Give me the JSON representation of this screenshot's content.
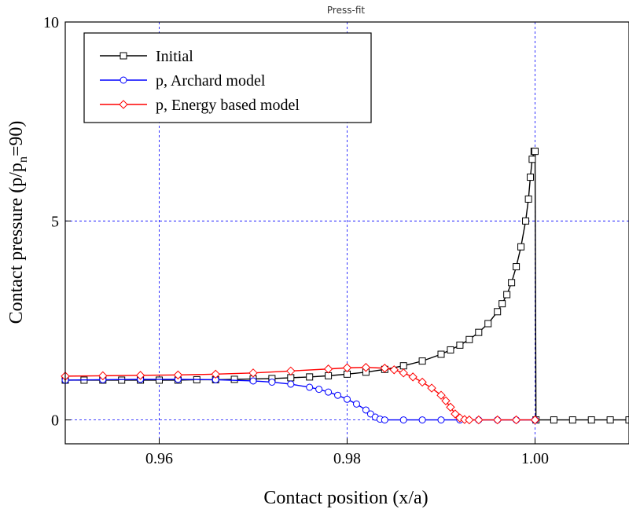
{
  "chart_data": {
    "type": "line",
    "title": "Press-fit",
    "xlabel": "Contact position (x/a)",
    "ylabel_main": "Contact pressure (p/p",
    "ylabel_sub": "n",
    "ylabel_tail": "=90)",
    "xlim": [
      0.95,
      1.01
    ],
    "ylim": [
      -0.6,
      10
    ],
    "x_ticks": [
      0.96,
      0.98,
      1.0
    ],
    "x_tick_labels": [
      "0.96",
      "0.98",
      "1.00"
    ],
    "y_ticks": [
      0,
      5,
      10
    ],
    "y_tick_labels": [
      "0",
      "5",
      "10"
    ],
    "grid": "dashed at major ticks",
    "legend_position": "top-left",
    "series": [
      {
        "name": "Initial",
        "color": "#000000",
        "marker": "square",
        "x": [
          0.95,
          0.952,
          0.954,
          0.956,
          0.958,
          0.96,
          0.962,
          0.964,
          0.966,
          0.968,
          0.97,
          0.972,
          0.974,
          0.976,
          0.978,
          0.98,
          0.982,
          0.984,
          0.986,
          0.988,
          0.99,
          0.991,
          0.992,
          0.993,
          0.994,
          0.995,
          0.996,
          0.9965,
          0.997,
          0.9975,
          0.998,
          0.9985,
          0.999,
          0.9993,
          0.9995,
          0.9997,
          0.9999,
          1.0,
          1.0001,
          1.002,
          1.004,
          1.006,
          1.008,
          1.01
        ],
        "y": [
          1.0,
          1.0,
          1.0,
          1.0,
          1.0,
          1.0,
          1.0,
          1.01,
          1.01,
          1.02,
          1.03,
          1.04,
          1.06,
          1.08,
          1.11,
          1.15,
          1.2,
          1.27,
          1.36,
          1.48,
          1.65,
          1.76,
          1.88,
          2.02,
          2.2,
          2.42,
          2.72,
          2.92,
          3.15,
          3.45,
          3.85,
          4.35,
          5.0,
          5.55,
          6.1,
          6.55,
          6.75,
          6.75,
          0.0,
          0.0,
          0.0,
          0.0,
          0.0,
          0.0
        ]
      },
      {
        "name": "p, Archard model",
        "color": "#0000ff",
        "marker": "circle",
        "x": [
          0.95,
          0.954,
          0.958,
          0.962,
          0.966,
          0.97,
          0.972,
          0.974,
          0.976,
          0.977,
          0.978,
          0.979,
          0.98,
          0.981,
          0.982,
          0.9825,
          0.983,
          0.9835,
          0.984,
          0.986,
          0.988,
          0.99,
          0.992,
          0.994,
          0.996,
          0.998,
          1.0
        ],
        "y": [
          1.0,
          1.01,
          1.02,
          1.02,
          1.01,
          0.98,
          0.95,
          0.9,
          0.82,
          0.77,
          0.7,
          0.62,
          0.52,
          0.4,
          0.25,
          0.15,
          0.07,
          0.02,
          0.0,
          0.0,
          0.0,
          0.0,
          0.0,
          0.0,
          0.0,
          0.0,
          0.0
        ]
      },
      {
        "name": "p, Energy based model",
        "color": "#ff0000",
        "marker": "diamond",
        "x": [
          0.95,
          0.954,
          0.958,
          0.962,
          0.966,
          0.97,
          0.974,
          0.978,
          0.98,
          0.982,
          0.984,
          0.985,
          0.986,
          0.987,
          0.988,
          0.989,
          0.99,
          0.9905,
          0.991,
          0.9915,
          0.992,
          0.9925,
          0.993,
          0.994,
          0.996,
          0.998,
          1.0
        ],
        "y": [
          1.1,
          1.11,
          1.12,
          1.13,
          1.15,
          1.18,
          1.23,
          1.28,
          1.31,
          1.32,
          1.3,
          1.26,
          1.18,
          1.08,
          0.95,
          0.8,
          0.62,
          0.48,
          0.32,
          0.15,
          0.05,
          0.01,
          0.0,
          0.0,
          0.0,
          0.0,
          0.0
        ]
      }
    ]
  }
}
